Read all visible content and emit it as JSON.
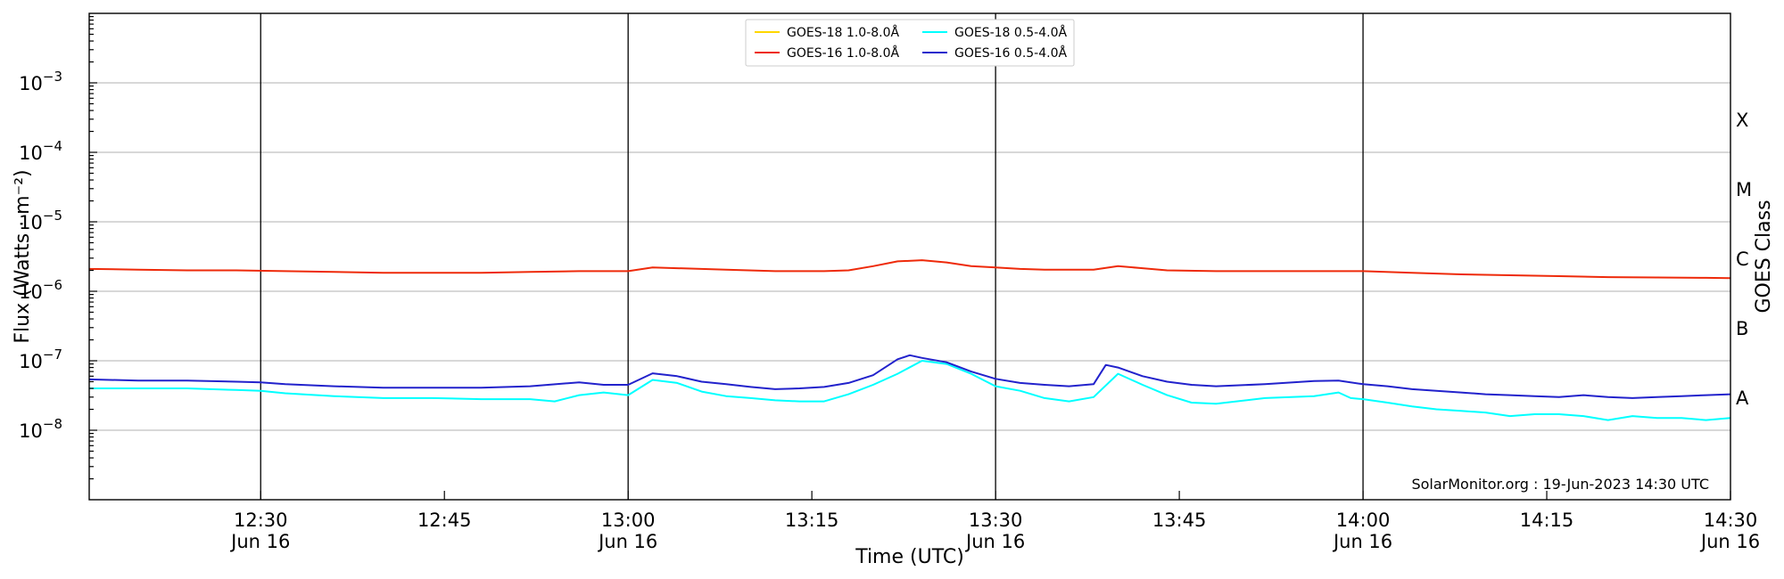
{
  "chart_data": {
    "type": "line",
    "ylabel": "Flux (Watts · m⁻²)",
    "xlabel": "Time (UTC)",
    "y_scale": "log",
    "ylim": [
      1e-09,
      0.01
    ],
    "y_ticks": [
      {
        "value": 1e-08,
        "label_base": "10",
        "label_exp": "−8"
      },
      {
        "value": 1e-07,
        "label_base": "10",
        "label_exp": "−7"
      },
      {
        "value": 1e-06,
        "label_base": "10",
        "label_exp": "−6"
      },
      {
        "value": 1e-05,
        "label_base": "10",
        "label_exp": "−5"
      },
      {
        "value": 0.0001,
        "label_base": "10",
        "label_exp": "−4"
      },
      {
        "value": 0.001,
        "label_base": "10",
        "label_exp": "−3"
      }
    ],
    "xlim": [
      "12:16",
      "14:30"
    ],
    "x_ticks": [
      {
        "time": "12:30",
        "label": "12:30",
        "sublabel": "Jun 16"
      },
      {
        "time": "12:45",
        "label": "12:45",
        "sublabel": ""
      },
      {
        "time": "13:00",
        "label": "13:00",
        "sublabel": "Jun 16"
      },
      {
        "time": "13:15",
        "label": "13:15",
        "sublabel": ""
      },
      {
        "time": "13:30",
        "label": "13:30",
        "sublabel": "Jun 16"
      },
      {
        "time": "13:45",
        "label": "13:45",
        "sublabel": ""
      },
      {
        "time": "14:00",
        "label": "14:00",
        "sublabel": "Jun 16"
      },
      {
        "time": "14:15",
        "label": "14:15",
        "sublabel": ""
      },
      {
        "time": "14:30",
        "label": "14:30",
        "sublabel": "Jun 16"
      }
    ],
    "vertical_lines": [
      "12:30",
      "13:00",
      "13:30",
      "14:00"
    ],
    "grid": "horizontal",
    "right_axis": {
      "label": "GOES Class",
      "classes": [
        {
          "label": "A",
          "value": 3e-08
        },
        {
          "label": "B",
          "value": 3e-07
        },
        {
          "label": "C",
          "value": 3e-06
        },
        {
          "label": "M",
          "value": 3e-05
        },
        {
          "label": "X",
          "value": 0.0003
        }
      ]
    },
    "legend_position": "top-center",
    "annotation": "SolarMonitor.org : 19-Jun-2023 14:30 UTC",
    "series": [
      {
        "name": "GOES-18 1.0-8.0Å",
        "color": "#ffd700",
        "x": [],
        "values": []
      },
      {
        "name": "GOES-16 1.0-8.0Å",
        "color": "#ee2a0a",
        "x": [
          "12:16",
          "12:20",
          "12:24",
          "12:28",
          "12:32",
          "12:36",
          "12:40",
          "12:44",
          "12:48",
          "12:52",
          "12:56",
          "13:00",
          "13:02",
          "13:04",
          "13:08",
          "13:12",
          "13:16",
          "13:18",
          "13:20",
          "13:22",
          "13:24",
          "13:26",
          "13:28",
          "13:30",
          "13:32",
          "13:34",
          "13:36",
          "13:38",
          "13:40",
          "13:42",
          "13:44",
          "13:48",
          "13:52",
          "13:56",
          "14:00",
          "14:04",
          "14:08",
          "14:12",
          "14:16",
          "14:20",
          "14:24",
          "14:28",
          "14:30"
        ],
        "values": [
          2.1e-06,
          2.05e-06,
          2e-06,
          2e-06,
          1.95e-06,
          1.9e-06,
          1.85e-06,
          1.85e-06,
          1.85e-06,
          1.9e-06,
          1.95e-06,
          1.95e-06,
          2.2e-06,
          2.15e-06,
          2.05e-06,
          1.95e-06,
          1.95e-06,
          2e-06,
          2.3e-06,
          2.7e-06,
          2.8e-06,
          2.6e-06,
          2.3e-06,
          2.2e-06,
          2.1e-06,
          2.05e-06,
          2.05e-06,
          2.05e-06,
          2.3e-06,
          2.15e-06,
          2e-06,
          1.95e-06,
          1.95e-06,
          1.95e-06,
          1.95e-06,
          1.85e-06,
          1.75e-06,
          1.7e-06,
          1.65e-06,
          1.6e-06,
          1.58e-06,
          1.56e-06,
          1.55e-06
        ]
      },
      {
        "name": "GOES-18 0.5-4.0Å",
        "color": "#00ffff",
        "x": [
          "12:16",
          "12:20",
          "12:24",
          "12:28",
          "12:30",
          "12:32",
          "12:36",
          "12:40",
          "12:44",
          "12:48",
          "12:52",
          "12:54",
          "12:56",
          "12:58",
          "13:00",
          "13:02",
          "13:04",
          "13:06",
          "13:08",
          "13:10",
          "13:12",
          "13:14",
          "13:16",
          "13:18",
          "13:20",
          "13:22",
          "13:24",
          "13:26",
          "13:28",
          "13:30",
          "13:32",
          "13:34",
          "13:36",
          "13:38",
          "13:40",
          "13:42",
          "13:44",
          "13:46",
          "13:48",
          "13:52",
          "13:56",
          "13:58",
          "13:59",
          "14:00",
          "14:02",
          "14:04",
          "14:06",
          "14:08",
          "14:10",
          "14:12",
          "14:14",
          "14:16",
          "14:18",
          "14:20",
          "14:22",
          "14:24",
          "14:26",
          "14:28",
          "14:30"
        ],
        "values": [
          4e-08,
          4e-08,
          4e-08,
          3.8e-08,
          3.7e-08,
          3.4e-08,
          3.1e-08,
          2.9e-08,
          2.9e-08,
          2.8e-08,
          2.8e-08,
          2.6e-08,
          3.2e-08,
          3.5e-08,
          3.2e-08,
          5.3e-08,
          4.8e-08,
          3.6e-08,
          3.1e-08,
          2.9e-08,
          2.7e-08,
          2.6e-08,
          2.6e-08,
          3.3e-08,
          4.5e-08,
          6.5e-08,
          1e-07,
          9e-08,
          6.5e-08,
          4.3e-08,
          3.7e-08,
          2.9e-08,
          2.6e-08,
          3e-08,
          6.5e-08,
          4.5e-08,
          3.2e-08,
          2.5e-08,
          2.4e-08,
          2.9e-08,
          3.1e-08,
          3.5e-08,
          2.9e-08,
          2.8e-08,
          2.5e-08,
          2.2e-08,
          2e-08,
          1.9e-08,
          1.8e-08,
          1.6e-08,
          1.7e-08,
          1.7e-08,
          1.6e-08,
          1.4e-08,
          1.6e-08,
          1.5e-08,
          1.5e-08,
          1.4e-08,
          1.5e-08
        ]
      },
      {
        "name": "GOES-16 0.5-4.0Å",
        "color": "#2222cc",
        "x": [
          "12:16",
          "12:20",
          "12:24",
          "12:28",
          "12:30",
          "12:32",
          "12:36",
          "12:40",
          "12:44",
          "12:48",
          "12:52",
          "12:56",
          "12:58",
          "13:00",
          "13:02",
          "13:04",
          "13:06",
          "13:08",
          "13:10",
          "13:12",
          "13:14",
          "13:16",
          "13:18",
          "13:20",
          "13:22",
          "13:23",
          "13:24",
          "13:26",
          "13:28",
          "13:30",
          "13:32",
          "13:34",
          "13:36",
          "13:38",
          "13:39",
          "13:40",
          "13:42",
          "13:44",
          "13:46",
          "13:48",
          "13:52",
          "13:56",
          "13:58",
          "14:00",
          "14:02",
          "14:04",
          "14:06",
          "14:08",
          "14:10",
          "14:12",
          "14:14",
          "14:16",
          "14:18",
          "14:20",
          "14:22",
          "14:24",
          "14:26",
          "14:28",
          "14:30"
        ],
        "values": [
          5.4e-08,
          5.2e-08,
          5.2e-08,
          5e-08,
          4.9e-08,
          4.6e-08,
          4.3e-08,
          4.1e-08,
          4.1e-08,
          4.1e-08,
          4.3e-08,
          4.9e-08,
          4.5e-08,
          4.5e-08,
          6.6e-08,
          6e-08,
          5e-08,
          4.6e-08,
          4.2e-08,
          3.9e-08,
          4e-08,
          4.2e-08,
          4.8e-08,
          6.2e-08,
          1.05e-07,
          1.2e-07,
          1.1e-07,
          9.5e-08,
          7e-08,
          5.5e-08,
          4.8e-08,
          4.5e-08,
          4.3e-08,
          4.6e-08,
          8.7e-08,
          8e-08,
          6e-08,
          5e-08,
          4.5e-08,
          4.3e-08,
          4.6e-08,
          5.1e-08,
          5.2e-08,
          4.6e-08,
          4.3e-08,
          3.9e-08,
          3.7e-08,
          3.5e-08,
          3.3e-08,
          3.2e-08,
          3.1e-08,
          3e-08,
          3.2e-08,
          3e-08,
          2.9e-08,
          3e-08,
          3.1e-08,
          3.2e-08,
          3.3e-08
        ]
      }
    ]
  }
}
